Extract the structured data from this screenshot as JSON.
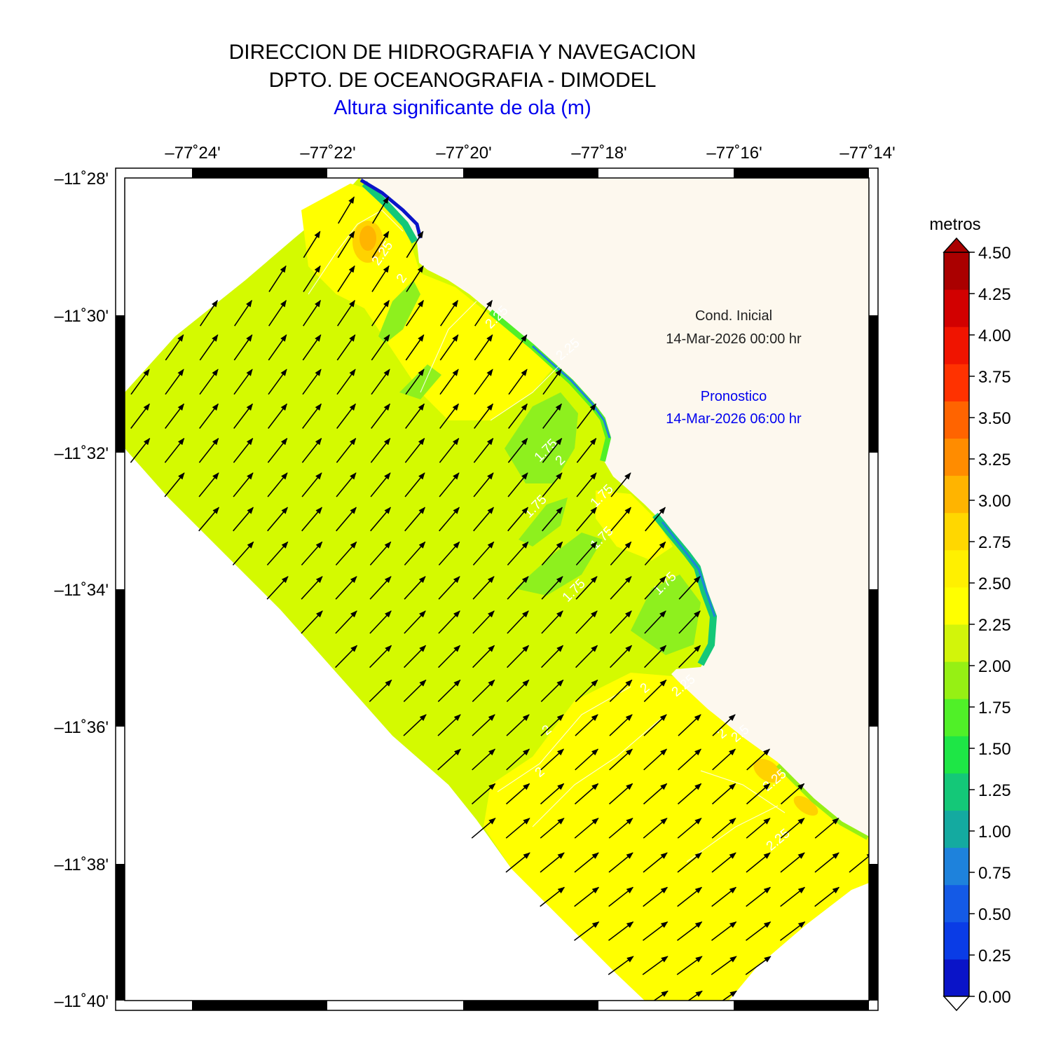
{
  "header": {
    "line1": "DIRECCION DE HIDROGRAFIA Y NAVEGACION",
    "line2": "DPTO. DE OCEANOGRAFIA - DIMODEL",
    "line3": "Altura significante de ola (m)"
  },
  "map": {
    "lon_ticks": [
      "–77˚24'",
      "–77˚22'",
      "–77˚20'",
      "–77˚18'",
      "–77˚16'",
      "–77˚14'"
    ],
    "lat_ticks": [
      "–11˚28'",
      "–11˚30'",
      "–11˚32'",
      "–11˚34'",
      "–11˚36'",
      "–11˚38'",
      "–11˚40'"
    ],
    "contour_labels": [
      "2.25",
      "2",
      "2.25",
      "1.75",
      "2",
      "1.75",
      "1.75",
      "1.75",
      "1.75",
      "1.75",
      "2",
      "2",
      "2.25",
      "2",
      "2",
      "2.25",
      "2.5",
      "2.25",
      "2.25"
    ],
    "land_color": "#fdf8ee",
    "arrow_direction": "northeast"
  },
  "info": {
    "cond_label": "Cond. Inicial",
    "cond_date": "14-Mar-2026 00:00 hr",
    "fc_label": "Pronostico",
    "fc_date": "14-Mar-2026 06:00 hr"
  },
  "colorbar": {
    "title": "metros",
    "labels": [
      "4.50",
      "4.25",
      "4.00",
      "3.75",
      "3.50",
      "3.25",
      "3.00",
      "2.75",
      "2.50",
      "2.25",
      "2.00",
      "1.75",
      "1.50",
      "1.25",
      "1.00",
      "0.75",
      "0.50",
      "0.25",
      "0.00"
    ],
    "colors": [
      "#0a14c8",
      "#0a3ce6",
      "#145ae6",
      "#1e82dc",
      "#14aaa0",
      "#14c878",
      "#1ee646",
      "#50f028",
      "#96f014",
      "#d2f50a",
      "#ffff00",
      "#fff000",
      "#ffd700",
      "#ffb400",
      "#ff8c00",
      "#ff6400",
      "#ff3200",
      "#f01400",
      "#d20000",
      "#aa0000"
    ]
  }
}
